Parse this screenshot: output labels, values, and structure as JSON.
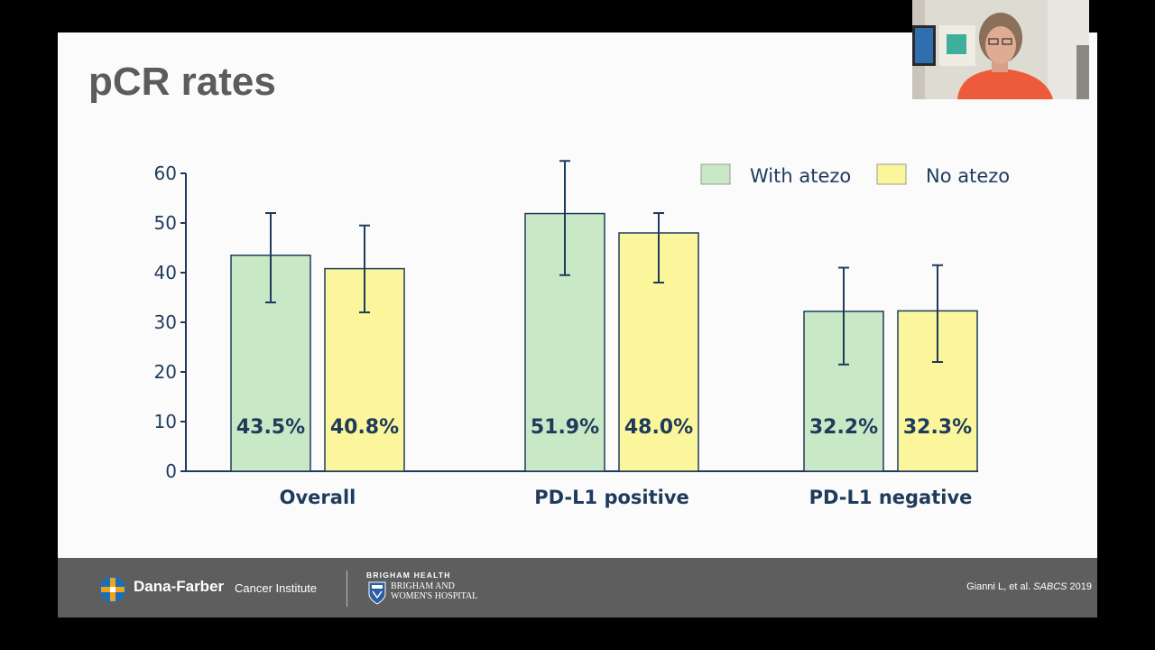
{
  "slide": {
    "title": "pCR rates"
  },
  "chart_data": {
    "type": "bar",
    "title": "pCR rates",
    "xlabel": "",
    "ylabel": "",
    "ylim": [
      0,
      60
    ],
    "yticks": [
      "0",
      "10",
      "20",
      "30",
      "40",
      "50",
      "60"
    ],
    "grid": false,
    "legend_position": "top-right",
    "categories": [
      "Overall",
      "PD-L1 positive",
      "PD-L1 negative"
    ],
    "series": [
      {
        "name": "With atezo",
        "color": "#c9e8c6",
        "values": [
          43.5,
          51.9,
          32.2
        ],
        "labels": [
          "43.5%",
          "51.9%",
          "32.2%"
        ],
        "error_low": [
          34,
          39.5,
          21.5
        ],
        "error_high": [
          52,
          62.5,
          41
        ]
      },
      {
        "name": "No atezo",
        "color": "#fbf59c",
        "values": [
          40.8,
          48.0,
          32.3
        ],
        "labels": [
          "40.8%",
          "48.0%",
          "32.3%"
        ],
        "error_low": [
          32,
          38,
          22
        ],
        "error_high": [
          49.5,
          52,
          41.5
        ]
      }
    ]
  },
  "footer": {
    "dana_farber_name": "Dana-Farber",
    "dana_farber_suffix": "Cancer Institute",
    "brigham_health": "BRIGHAM HEALTH",
    "brigham_hospital_line1": "BRIGHAM AND",
    "brigham_hospital_line2": "WOMEN'S HOSPITAL",
    "citation_authors": "Gianni L, et al.",
    "citation_venue": "SABCS",
    "citation_year": "2019"
  },
  "colors": {
    "axis": "#1f3b5c",
    "label_text": "#1f3b5c",
    "footer_bg": "#5e5e5e"
  }
}
